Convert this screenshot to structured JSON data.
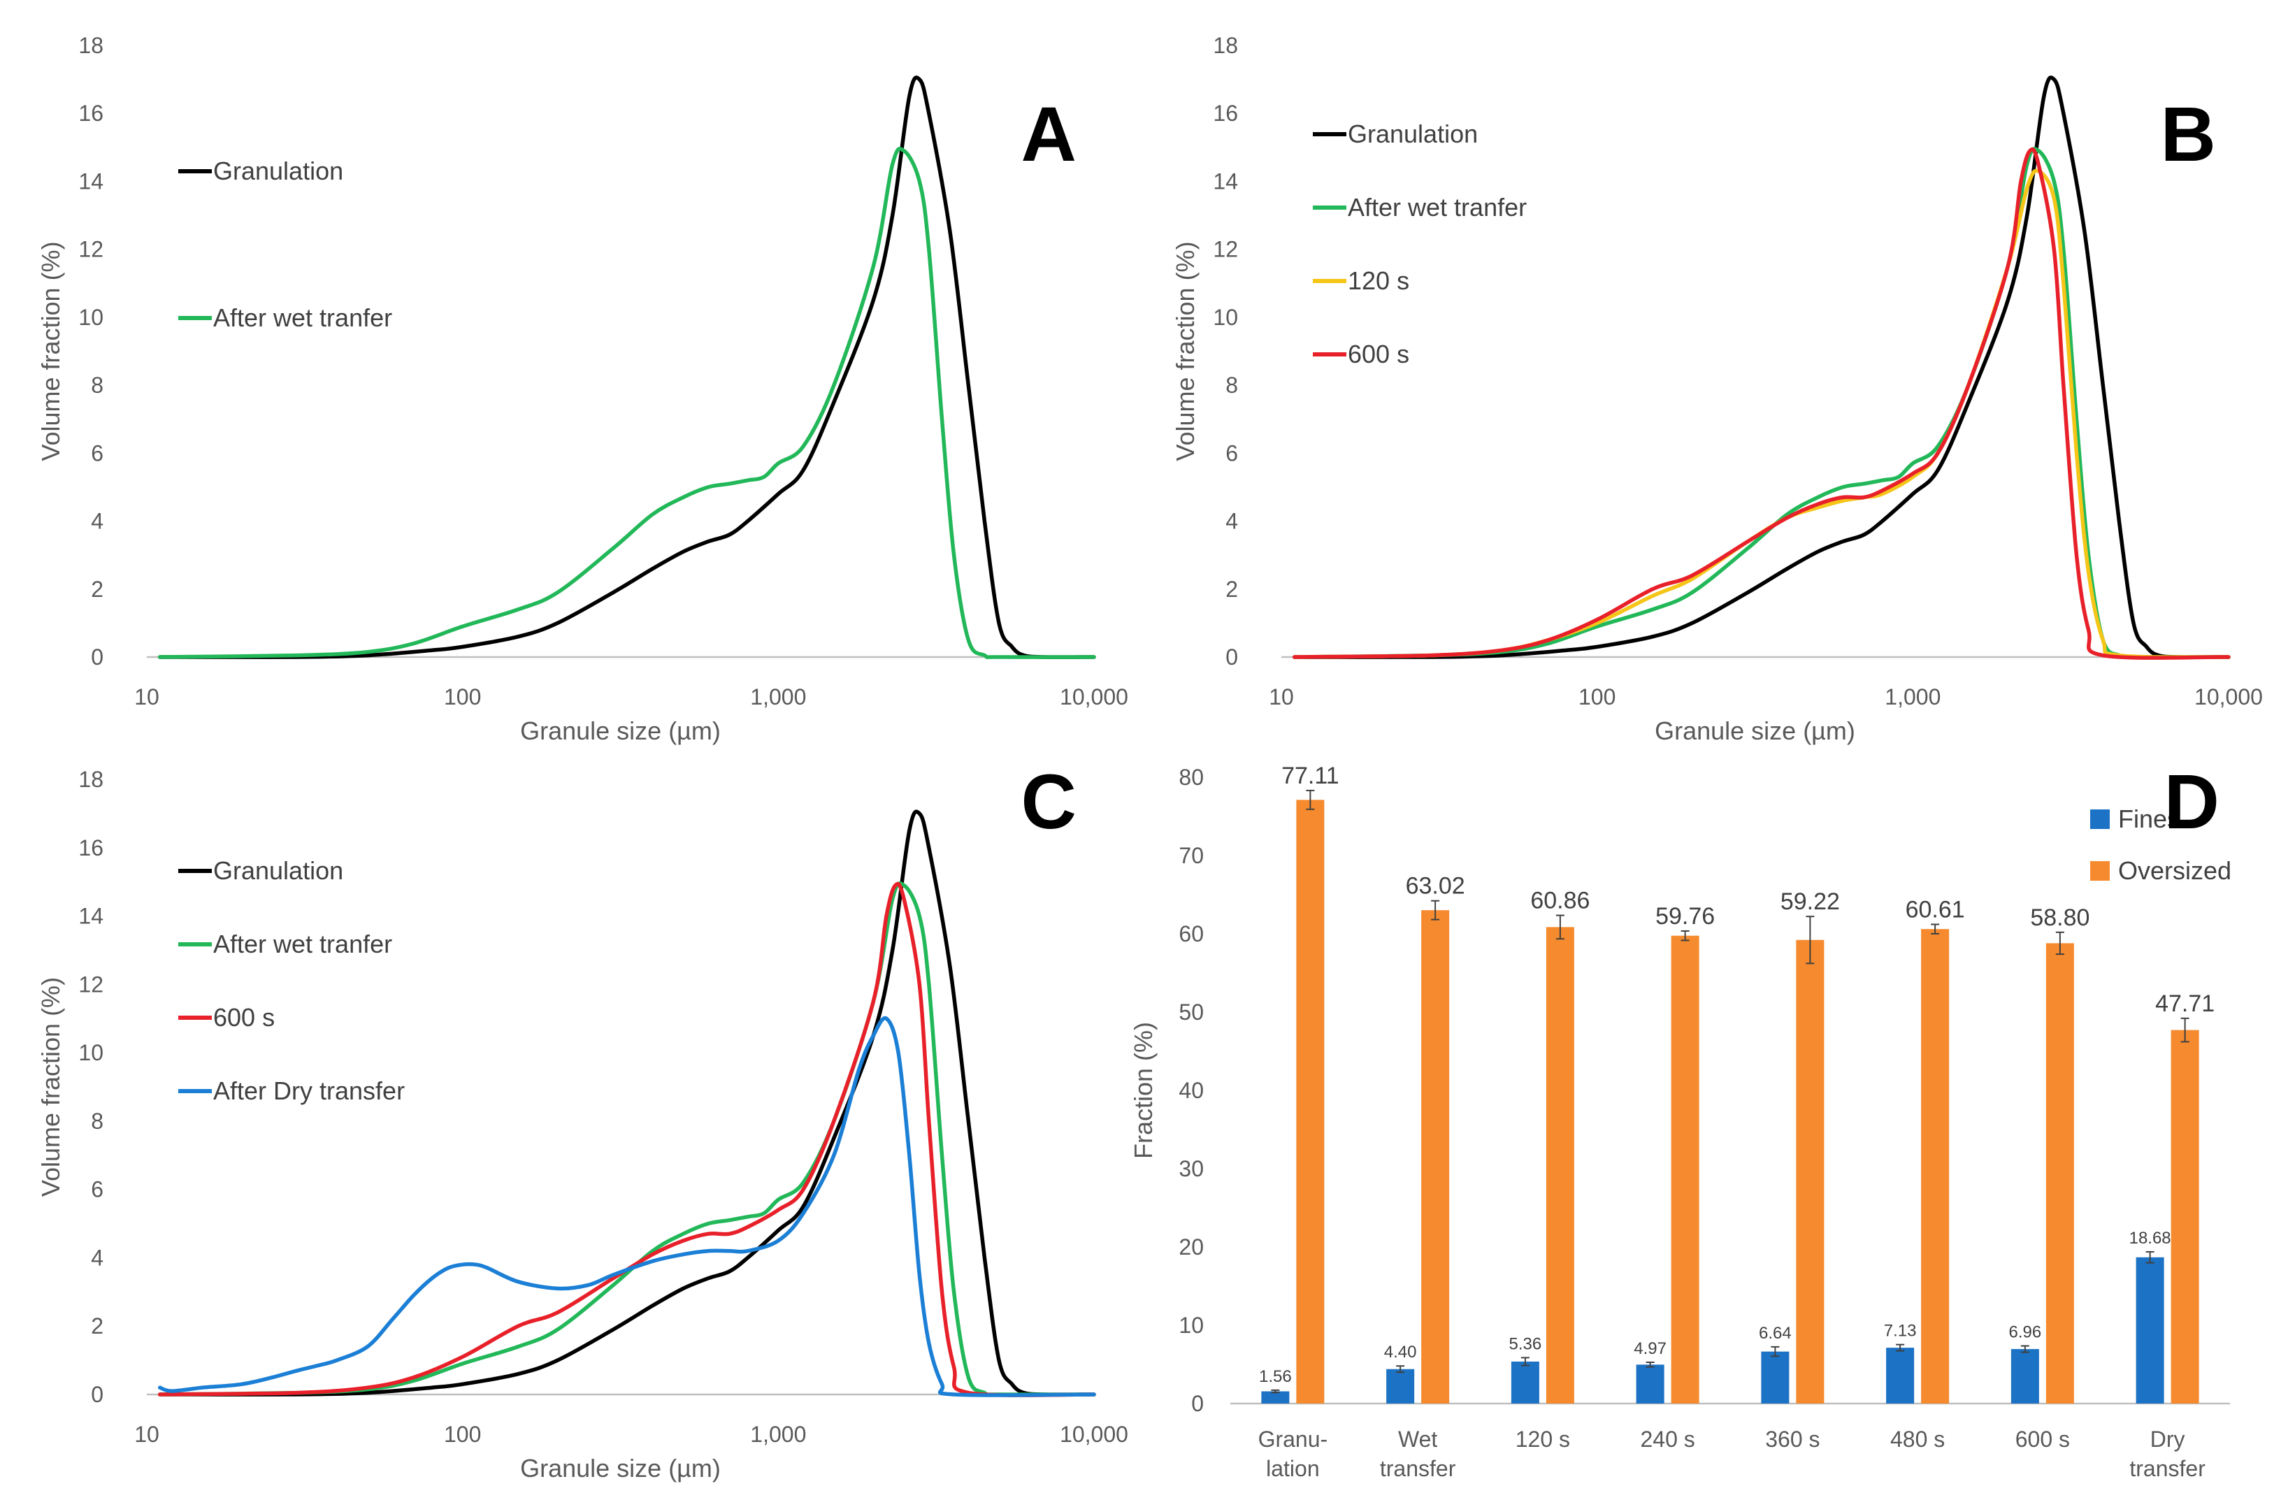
{
  "chart_data": [
    {
      "type": "line",
      "panel_label": "A",
      "xscale": "log",
      "xlabel": "Granule size (µm)",
      "ylabel": "Volume fraction (%)",
      "xlim": [
        10,
        10000
      ],
      "ylim": [
        0,
        18
      ],
      "xticks": [
        10,
        100,
        1000,
        10000
      ],
      "xtick_labels": [
        "10",
        "100",
        "1,000",
        "10,000"
      ],
      "yticks": [
        0,
        2,
        4,
        6,
        8,
        10,
        12,
        14,
        16,
        18
      ],
      "legend": "inline-left",
      "series": [
        {
          "name": "Granulation",
          "color": "#000000",
          "x": [
            11,
            30,
            50,
            80,
            100,
            150,
            200,
            300,
            400,
            500,
            600,
            700,
            800,
            1000,
            1200,
            1500,
            2000,
            2300,
            2600,
            2800,
            3000,
            3500,
            4000,
            4500,
            5000,
            5500,
            6000,
            7000,
            10000
          ],
          "y": [
            0,
            0,
            0.05,
            0.2,
            0.3,
            0.6,
            1.0,
            1.9,
            2.6,
            3.1,
            3.4,
            3.6,
            4.0,
            4.8,
            5.5,
            7.5,
            10.5,
            13.0,
            16.5,
            17.0,
            16.0,
            12.5,
            8.0,
            4.0,
            1.0,
            0.3,
            0.05,
            0,
            0
          ]
        },
        {
          "name": "After wet tranfer",
          "color": "#22b859",
          "x": [
            11,
            30,
            50,
            70,
            100,
            150,
            200,
            300,
            400,
            500,
            600,
            700,
            800,
            900,
            1000,
            1200,
            1500,
            2000,
            2300,
            2500,
            2800,
            3000,
            3300,
            3600,
            4000,
            4500,
            5000,
            10000
          ],
          "y": [
            0,
            0.05,
            0.15,
            0.4,
            0.9,
            1.4,
            1.9,
            3.2,
            4.2,
            4.7,
            5.0,
            5.1,
            5.2,
            5.3,
            5.7,
            6.2,
            8.0,
            11.5,
            14.5,
            14.9,
            14.0,
            12.0,
            7.0,
            3.0,
            0.5,
            0.05,
            0,
            0
          ]
        }
      ]
    },
    {
      "type": "line",
      "panel_label": "B",
      "xscale": "log",
      "xlabel": "Granule size (µm)",
      "ylabel": "Volume fraction (%)",
      "xlim": [
        10,
        10000
      ],
      "ylim": [
        0,
        18
      ],
      "xticks": [
        10,
        100,
        1000,
        10000
      ],
      "xtick_labels": [
        "10",
        "100",
        "1,000",
        "10,000"
      ],
      "yticks": [
        0,
        2,
        4,
        6,
        8,
        10,
        12,
        14,
        16,
        18
      ],
      "legend": "inline-left",
      "series": [
        {
          "name": "Granulation",
          "color": "#000000",
          "x": [
            11,
            30,
            50,
            80,
            100,
            150,
            200,
            300,
            400,
            500,
            600,
            700,
            800,
            1000,
            1200,
            1500,
            2000,
            2300,
            2600,
            2800,
            3000,
            3500,
            4000,
            4500,
            5000,
            5500,
            6000,
            7000,
            10000
          ],
          "y": [
            0,
            0,
            0.05,
            0.2,
            0.3,
            0.6,
            1.0,
            1.9,
            2.6,
            3.1,
            3.4,
            3.6,
            4.0,
            4.8,
            5.5,
            7.5,
            10.5,
            13.0,
            16.5,
            17.0,
            16.0,
            12.5,
            8.0,
            4.0,
            1.0,
            0.3,
            0.05,
            0,
            0
          ]
        },
        {
          "name": "After wet tranfer",
          "color": "#22b859",
          "x": [
            11,
            30,
            50,
            70,
            100,
            150,
            200,
            300,
            400,
            500,
            600,
            700,
            800,
            900,
            1000,
            1200,
            1500,
            2000,
            2300,
            2500,
            2800,
            3000,
            3300,
            3600,
            4000,
            4500,
            5000,
            10000
          ],
          "y": [
            0,
            0.05,
            0.15,
            0.4,
            0.9,
            1.4,
            1.9,
            3.2,
            4.2,
            4.7,
            5.0,
            5.1,
            5.2,
            5.3,
            5.7,
            6.2,
            8.0,
            11.5,
            14.5,
            14.9,
            14.0,
            12.0,
            7.0,
            3.0,
            0.5,
            0.05,
            0,
            0
          ]
        },
        {
          "name": "120 s",
          "color": "#f5c518",
          "x": [
            11,
            30,
            50,
            70,
            100,
            150,
            200,
            300,
            400,
            500,
            600,
            700,
            800,
            1000,
            1200,
            1500,
            2000,
            2300,
            2500,
            2800,
            3000,
            3300,
            3600,
            4000,
            4500,
            10000
          ],
          "y": [
            0,
            0.05,
            0.2,
            0.5,
            1.0,
            1.8,
            2.3,
            3.4,
            4.1,
            4.4,
            4.6,
            4.7,
            4.8,
            5.3,
            6.0,
            8.0,
            11.5,
            13.8,
            14.3,
            13.5,
            11.0,
            6.0,
            2.5,
            0.5,
            0.05,
            0
          ]
        },
        {
          "name": "600 s",
          "color": "#e8202a",
          "x": [
            11,
            30,
            50,
            70,
            100,
            150,
            200,
            300,
            400,
            500,
            600,
            700,
            800,
            1000,
            1200,
            1500,
            2000,
            2200,
            2350,
            2500,
            2800,
            3000,
            3300,
            3600,
            4000,
            10000
          ],
          "y": [
            0,
            0.05,
            0.2,
            0.5,
            1.1,
            2.0,
            2.4,
            3.4,
            4.1,
            4.5,
            4.7,
            4.7,
            4.9,
            5.4,
            6.0,
            8.0,
            11.5,
            14.0,
            14.9,
            14.5,
            12.0,
            8.0,
            3.0,
            0.8,
            0.05,
            0
          ]
        }
      ]
    },
    {
      "type": "line",
      "panel_label": "C",
      "xscale": "log",
      "xlabel": "Granule size (µm)",
      "ylabel": "Volume fraction (%)",
      "xlim": [
        10,
        10000
      ],
      "ylim": [
        0,
        18
      ],
      "xticks": [
        10,
        100,
        1000,
        10000
      ],
      "xtick_labels": [
        "10",
        "100",
        "1,000",
        "10,000"
      ],
      "yticks": [
        0,
        2,
        4,
        6,
        8,
        10,
        12,
        14,
        16,
        18
      ],
      "legend": "inline-left",
      "series": [
        {
          "name": "Granulation",
          "color": "#000000",
          "x": [
            11,
            30,
            50,
            80,
            100,
            150,
            200,
            300,
            400,
            500,
            600,
            700,
            800,
            1000,
            1200,
            1500,
            2000,
            2300,
            2600,
            2800,
            3000,
            3500,
            4000,
            4500,
            5000,
            5500,
            6000,
            7000,
            10000
          ],
          "y": [
            0,
            0,
            0.05,
            0.2,
            0.3,
            0.6,
            1.0,
            1.9,
            2.6,
            3.1,
            3.4,
            3.6,
            4.0,
            4.8,
            5.5,
            7.5,
            10.5,
            13.0,
            16.5,
            17.0,
            16.0,
            12.5,
            8.0,
            4.0,
            1.0,
            0.3,
            0.05,
            0,
            0
          ]
        },
        {
          "name": "After wet tranfer",
          "color": "#22b859",
          "x": [
            11,
            30,
            50,
            70,
            100,
            150,
            200,
            300,
            400,
            500,
            600,
            700,
            800,
            900,
            1000,
            1200,
            1500,
            2000,
            2300,
            2500,
            2800,
            3000,
            3300,
            3600,
            4000,
            4500,
            5000,
            10000
          ],
          "y": [
            0,
            0.05,
            0.15,
            0.4,
            0.9,
            1.4,
            1.9,
            3.2,
            4.2,
            4.7,
            5.0,
            5.1,
            5.2,
            5.3,
            5.7,
            6.2,
            8.0,
            11.5,
            14.5,
            14.9,
            14.0,
            12.0,
            7.0,
            3.0,
            0.5,
            0.05,
            0,
            0
          ]
        },
        {
          "name": "600 s",
          "color": "#e8202a",
          "x": [
            11,
            30,
            50,
            70,
            100,
            150,
            200,
            300,
            400,
            500,
            600,
            700,
            800,
            1000,
            1200,
            1500,
            2000,
            2200,
            2350,
            2500,
            2800,
            3000,
            3300,
            3600,
            4000,
            10000
          ],
          "y": [
            0,
            0.05,
            0.2,
            0.5,
            1.1,
            2.0,
            2.4,
            3.4,
            4.1,
            4.5,
            4.7,
            4.7,
            4.9,
            5.4,
            6.0,
            8.0,
            11.5,
            14.0,
            14.9,
            14.5,
            12.0,
            8.0,
            3.0,
            0.8,
            0.05,
            0
          ]
        },
        {
          "name": "After Dry transfer",
          "color": "#1b7fd6",
          "x": [
            11,
            12,
            15,
            20,
            25,
            30,
            35,
            40,
            50,
            60,
            70,
            80,
            90,
            100,
            110,
            120,
            150,
            200,
            250,
            300,
            400,
            500,
            600,
            700,
            800,
            1000,
            1200,
            1500,
            1800,
            2000,
            2200,
            2400,
            2600,
            2800,
            3000,
            3300,
            3600,
            10000
          ],
          "y": [
            0.2,
            0.1,
            0.2,
            0.3,
            0.5,
            0.7,
            0.85,
            1.0,
            1.4,
            2.2,
            2.9,
            3.4,
            3.7,
            3.8,
            3.8,
            3.7,
            3.3,
            3.1,
            3.2,
            3.5,
            3.9,
            4.1,
            4.2,
            4.2,
            4.2,
            4.5,
            5.3,
            7.0,
            9.5,
            10.5,
            11.0,
            10.0,
            7.0,
            3.5,
            1.5,
            0.3,
            0,
            0
          ]
        }
      ]
    },
    {
      "type": "bar",
      "panel_label": "D",
      "ylabel": "Fraction (%)",
      "ylim": [
        0,
        80
      ],
      "yticks": [
        0,
        10,
        20,
        30,
        40,
        50,
        60,
        70,
        80
      ],
      "categories": [
        [
          "Granu-",
          "lation"
        ],
        [
          "Wet",
          "transfer"
        ],
        [
          "120 s"
        ],
        [
          "240 s"
        ],
        [
          "360 s"
        ],
        [
          "480 s"
        ],
        [
          "600 s"
        ],
        [
          "Dry",
          "transfer"
        ]
      ],
      "legend": "top-right",
      "series": [
        {
          "name": "Fines",
          "color": "#1c72c4",
          "values": [
            1.56,
            4.4,
            5.36,
            4.97,
            6.64,
            7.13,
            6.96,
            18.68
          ],
          "labels": [
            "1.56",
            "4.40",
            "5.36",
            "4.97",
            "6.64",
            "7.13",
            "6.96",
            "18.68"
          ],
          "errors": [
            0.15,
            0.4,
            0.5,
            0.3,
            0.6,
            0.4,
            0.4,
            0.7
          ]
        },
        {
          "name": "Oversized",
          "color": "#f58a2e",
          "values": [
            77.11,
            63.02,
            60.86,
            59.76,
            59.22,
            60.61,
            58.8,
            47.71
          ],
          "labels": [
            "77.11",
            "63.02",
            "60.86",
            "59.76",
            "59.22",
            "60.61",
            "58.80",
            "47.71"
          ],
          "errors": [
            1.2,
            1.2,
            1.5,
            0.6,
            3.0,
            0.6,
            1.4,
            1.5
          ]
        }
      ]
    }
  ]
}
